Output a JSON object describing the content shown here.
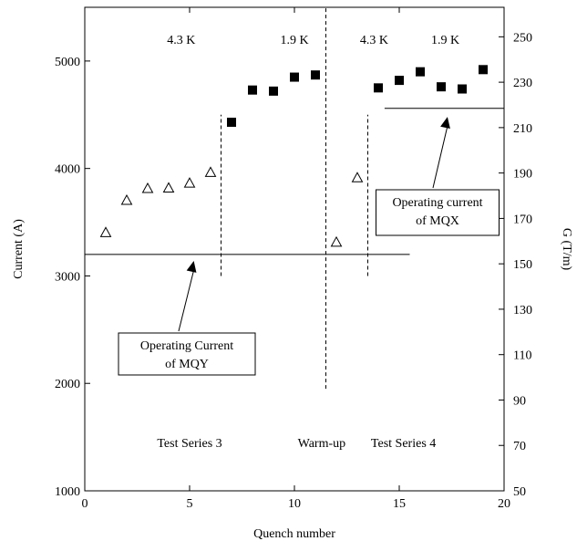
{
  "chart_data": {
    "type": "scatter",
    "xlabel": "Quench number",
    "ylabel_left": "Current (A)",
    "ylabel_right": "G (T/m)",
    "xlim": [
      0,
      20
    ],
    "ylim_left": [
      1000,
      5500
    ],
    "ylim_right": [
      50,
      263
    ],
    "x_ticks": [
      0,
      5,
      10,
      15,
      20
    ],
    "y_ticks_left": [
      1000,
      2000,
      3000,
      4000,
      5000
    ],
    "y_ticks_right": [
      50,
      70,
      90,
      110,
      130,
      150,
      170,
      190,
      210,
      230,
      250
    ],
    "series": [
      {
        "marker": "open-triangle",
        "points": [
          {
            "x": 1,
            "y": 3400
          },
          {
            "x": 2,
            "y": 3700
          },
          {
            "x": 3,
            "y": 3810
          },
          {
            "x": 4,
            "y": 3815
          },
          {
            "x": 5,
            "y": 3860
          },
          {
            "x": 6,
            "y": 3960
          },
          {
            "x": 12,
            "y": 3310
          },
          {
            "x": 13,
            "y": 3910
          }
        ]
      },
      {
        "marker": "filled-square",
        "points": [
          {
            "x": 7,
            "y": 4430
          },
          {
            "x": 8,
            "y": 4730
          },
          {
            "x": 9,
            "y": 4720
          },
          {
            "x": 10,
            "y": 4850
          },
          {
            "x": 11,
            "y": 4870
          },
          {
            "x": 14,
            "y": 4750
          },
          {
            "x": 15,
            "y": 4820
          },
          {
            "x": 16,
            "y": 4900
          },
          {
            "x": 17,
            "y": 4760
          },
          {
            "x": 18,
            "y": 4740
          },
          {
            "x": 19,
            "y": 4920
          }
        ]
      }
    ],
    "reference_lines": [
      {
        "kind": "horizontal",
        "y": 3200,
        "x": [
          0,
          15.5
        ]
      },
      {
        "kind": "horizontal",
        "y": 4560,
        "x": [
          14.3,
          20
        ]
      },
      {
        "kind": "vertical",
        "x": 6.5,
        "y": [
          3000,
          4500
        ]
      },
      {
        "kind": "vertical",
        "x": 11.5,
        "y": [
          1950,
          5500
        ]
      },
      {
        "kind": "vertical",
        "x": 13.5,
        "y": [
          3000,
          4500
        ]
      }
    ],
    "top_labels": [
      {
        "text": "4.3 K",
        "x": 4.6
      },
      {
        "text": "1.9 K",
        "x": 10.0
      },
      {
        "text": "4.3 K",
        "x": 13.8
      },
      {
        "text": "1.9 K",
        "x": 17.2
      }
    ],
    "bottom_labels": [
      {
        "text": "Test Series 3",
        "x": 5.0
      },
      {
        "text": "Warm-up",
        "x": 11.3
      },
      {
        "text": "Test Series 4",
        "x": 15.2
      }
    ],
    "annotations": [
      {
        "lines": [
          "Operating Current",
          "of MQY"
        ],
        "arrow_to": {
          "x": 5.2,
          "y": 3140
        }
      },
      {
        "lines": [
          "Operating current",
          "of MQX"
        ],
        "arrow_to": {
          "x": 17.3,
          "y": 4480
        }
      }
    ]
  }
}
